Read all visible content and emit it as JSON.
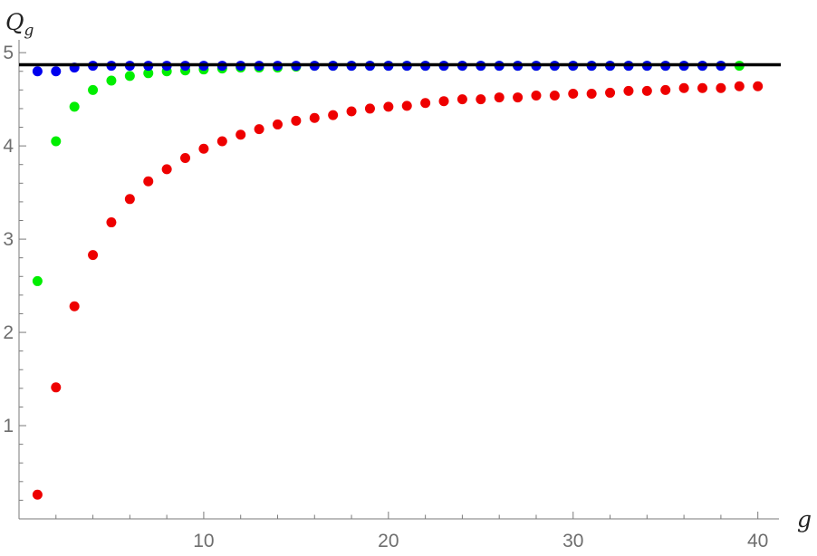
{
  "chart_data": {
    "type": "scatter",
    "xlabel": "g",
    "ylabel": "Q",
    "ylabel_sub": "g",
    "xlim": [
      0,
      40.8
    ],
    "ylim": [
      0,
      5.05
    ],
    "x_ticks": [
      10,
      20,
      30,
      40
    ],
    "y_ticks": [
      1,
      2,
      3,
      4,
      5
    ],
    "grid": false,
    "reference_line": {
      "y": 4.87,
      "color": "#000000"
    },
    "series": [
      {
        "color": "#ee0000",
        "x": [
          1,
          2,
          3,
          4,
          5,
          6,
          7,
          8,
          9,
          10,
          11,
          12,
          13,
          14,
          15,
          16,
          17,
          18,
          19,
          20,
          21,
          22,
          23,
          24,
          25,
          26,
          27,
          28,
          29,
          30,
          31,
          32,
          33,
          34,
          35,
          36,
          37,
          38,
          39,
          40
        ],
        "y": [
          0.26,
          1.41,
          2.28,
          2.83,
          3.18,
          3.43,
          3.62,
          3.75,
          3.87,
          3.97,
          4.05,
          4.12,
          4.18,
          4.23,
          4.27,
          4.3,
          4.33,
          4.37,
          4.4,
          4.42,
          4.43,
          4.46,
          4.48,
          4.5,
          4.5,
          4.52,
          4.52,
          4.54,
          4.54,
          4.56,
          4.56,
          4.57,
          4.59,
          4.59,
          4.6,
          4.62,
          4.62,
          4.62,
          4.64,
          4.64
        ]
      },
      {
        "color": "#00ee00",
        "x": [
          1,
          2,
          3,
          4,
          5,
          6,
          7,
          8,
          9,
          10,
          11,
          12,
          13,
          14,
          15,
          16,
          17,
          18,
          19,
          20,
          21,
          22,
          23,
          24,
          25,
          26,
          27,
          28,
          29,
          30,
          31,
          32,
          33,
          34,
          35,
          36,
          37,
          38,
          39
        ],
        "y": [
          2.55,
          4.05,
          4.42,
          4.6,
          4.7,
          4.75,
          4.78,
          4.8,
          4.81,
          4.82,
          4.83,
          4.84,
          4.84,
          4.84,
          4.85,
          4.86,
          4.86,
          4.86,
          4.86,
          4.86,
          4.86,
          4.86,
          4.86,
          4.86,
          4.86,
          4.86,
          4.86,
          4.86,
          4.86,
          4.86,
          4.86,
          4.86,
          4.86,
          4.86,
          4.86,
          4.86,
          4.86,
          4.86,
          4.86
        ]
      },
      {
        "color": "#0000ee",
        "x": [
          1,
          2,
          3,
          4,
          5,
          6,
          7,
          8,
          9,
          10,
          11,
          12,
          13,
          14,
          15,
          16,
          17,
          18,
          19,
          20,
          21,
          22,
          23,
          24,
          25,
          26,
          27,
          28,
          29,
          30,
          31,
          32,
          33,
          34,
          35,
          36,
          37,
          38
        ],
        "y": [
          4.8,
          4.8,
          4.84,
          4.86,
          4.86,
          4.86,
          4.86,
          4.86,
          4.86,
          4.86,
          4.86,
          4.86,
          4.86,
          4.86,
          4.86,
          4.86,
          4.86,
          4.86,
          4.86,
          4.86,
          4.86,
          4.86,
          4.86,
          4.86,
          4.86,
          4.86,
          4.86,
          4.86,
          4.86,
          4.86,
          4.86,
          4.86,
          4.86,
          4.86,
          4.86,
          4.86,
          4.86,
          4.86
        ]
      }
    ]
  }
}
